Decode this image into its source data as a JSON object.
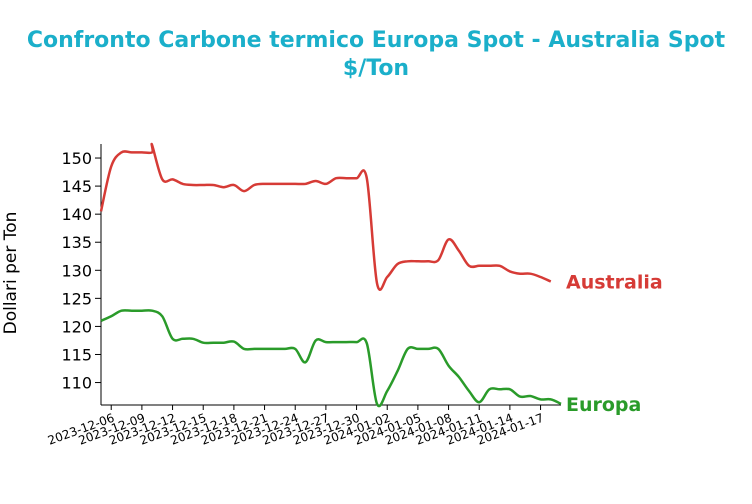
{
  "chart_data": {
    "type": "line",
    "title": "Confronto Carbone termico Europa Spot - Australia Spot",
    "subtitle": "$/Ton",
    "xlabel": "",
    "ylabel": "Dollari per Ton",
    "ylim": [
      106,
      152.5
    ],
    "xlim": [
      "2023-12-05",
      "2024-01-19"
    ],
    "grid": false,
    "legend": "inline labels at right end of lines",
    "yticks": [
      110,
      115,
      120,
      125,
      130,
      135,
      140,
      145,
      150
    ],
    "xticks": [
      "2023-12-06",
      "2023-12-09",
      "2023-12-12",
      "2023-12-15",
      "2023-12-18",
      "2023-12-21",
      "2023-12-24",
      "2023-12-27",
      "2023-12-30",
      "2024-01-02",
      "2024-01-05",
      "2024-01-08",
      "2024-01-11",
      "2024-01-14",
      "2024-01-17"
    ],
    "series": [
      {
        "name": "Australia",
        "color": "#d63b36",
        "points": [
          [
            "2023-12-05",
            140.5
          ],
          [
            "2023-12-06",
            148.5
          ],
          [
            "2023-12-07",
            151.0
          ],
          [
            "2023-12-08",
            151.0
          ],
          [
            "2023-12-09",
            151.0
          ],
          [
            "2023-12-10",
            151.0
          ],
          [
            "2023-12-10",
            152.3
          ],
          [
            "2023-12-11",
            146.2
          ],
          [
            "2023-12-12",
            146.2
          ],
          [
            "2023-12-13",
            145.4
          ],
          [
            "2023-12-14",
            145.2
          ],
          [
            "2023-12-15",
            145.2
          ],
          [
            "2023-12-16",
            145.2
          ],
          [
            "2023-12-17",
            144.8
          ],
          [
            "2023-12-18",
            145.2
          ],
          [
            "2023-12-19",
            144.1
          ],
          [
            "2023-12-20",
            145.2
          ],
          [
            "2023-12-21",
            145.4
          ],
          [
            "2023-12-22",
            145.4
          ],
          [
            "2023-12-23",
            145.4
          ],
          [
            "2023-12-24",
            145.4
          ],
          [
            "2023-12-25",
            145.4
          ],
          [
            "2023-12-26",
            145.9
          ],
          [
            "2023-12-27",
            145.4
          ],
          [
            "2023-12-28",
            146.4
          ],
          [
            "2023-12-29",
            146.4
          ],
          [
            "2023-12-30",
            146.4
          ],
          [
            "2023-12-31",
            146.4
          ],
          [
            "2024-01-01",
            127.7
          ],
          [
            "2024-01-02",
            128.8
          ],
          [
            "2024-01-03",
            131.1
          ],
          [
            "2024-01-04",
            131.6
          ],
          [
            "2024-01-05",
            131.6
          ],
          [
            "2024-01-06",
            131.6
          ],
          [
            "2024-01-07",
            131.8
          ],
          [
            "2024-01-08",
            135.5
          ],
          [
            "2024-01-09",
            133.5
          ],
          [
            "2024-01-10",
            130.8
          ],
          [
            "2024-01-11",
            130.8
          ],
          [
            "2024-01-12",
            130.8
          ],
          [
            "2024-01-13",
            130.8
          ],
          [
            "2024-01-14",
            129.8
          ],
          [
            "2024-01-15",
            129.4
          ],
          [
            "2024-01-16",
            129.4
          ],
          [
            "2024-01-17",
            128.8
          ],
          [
            "2024-01-18",
            128.0
          ]
        ]
      },
      {
        "name": "Europa",
        "color": "#2a9b2a",
        "points": [
          [
            "2023-12-05",
            121.0
          ],
          [
            "2023-12-06",
            121.8
          ],
          [
            "2023-12-07",
            122.8
          ],
          [
            "2023-12-08",
            122.8
          ],
          [
            "2023-12-09",
            122.8
          ],
          [
            "2023-12-10",
            122.8
          ],
          [
            "2023-12-11",
            121.8
          ],
          [
            "2023-12-12",
            117.8
          ],
          [
            "2023-12-13",
            117.8
          ],
          [
            "2023-12-14",
            117.8
          ],
          [
            "2023-12-15",
            117.1
          ],
          [
            "2023-12-16",
            117.1
          ],
          [
            "2023-12-17",
            117.1
          ],
          [
            "2023-12-18",
            117.3
          ],
          [
            "2023-12-19",
            116.0
          ],
          [
            "2023-12-20",
            116.0
          ],
          [
            "2023-12-21",
            116.0
          ],
          [
            "2023-12-22",
            116.0
          ],
          [
            "2023-12-23",
            116.0
          ],
          [
            "2023-12-24",
            116.0
          ],
          [
            "2023-12-25",
            113.6
          ],
          [
            "2023-12-26",
            117.5
          ],
          [
            "2023-12-27",
            117.2
          ],
          [
            "2023-12-28",
            117.2
          ],
          [
            "2023-12-29",
            117.2
          ],
          [
            "2023-12-30",
            117.2
          ],
          [
            "2023-12-31",
            117.0
          ],
          [
            "2024-01-01",
            106.2
          ],
          [
            "2024-01-02",
            108.5
          ],
          [
            "2024-01-03",
            112.0
          ],
          [
            "2024-01-04",
            116.0
          ],
          [
            "2024-01-05",
            116.0
          ],
          [
            "2024-01-06",
            116.0
          ],
          [
            "2024-01-07",
            116.0
          ],
          [
            "2024-01-08",
            113.0
          ],
          [
            "2024-01-09",
            111.0
          ],
          [
            "2024-01-10",
            108.5
          ],
          [
            "2024-01-11",
            106.5
          ],
          [
            "2024-01-12",
            108.8
          ],
          [
            "2024-01-13",
            108.8
          ],
          [
            "2024-01-14",
            108.8
          ],
          [
            "2024-01-15",
            107.5
          ],
          [
            "2024-01-16",
            107.6
          ],
          [
            "2024-01-17",
            107.0
          ],
          [
            "2024-01-18",
            107.0
          ],
          [
            "2024-01-19",
            106.2
          ]
        ]
      }
    ]
  }
}
